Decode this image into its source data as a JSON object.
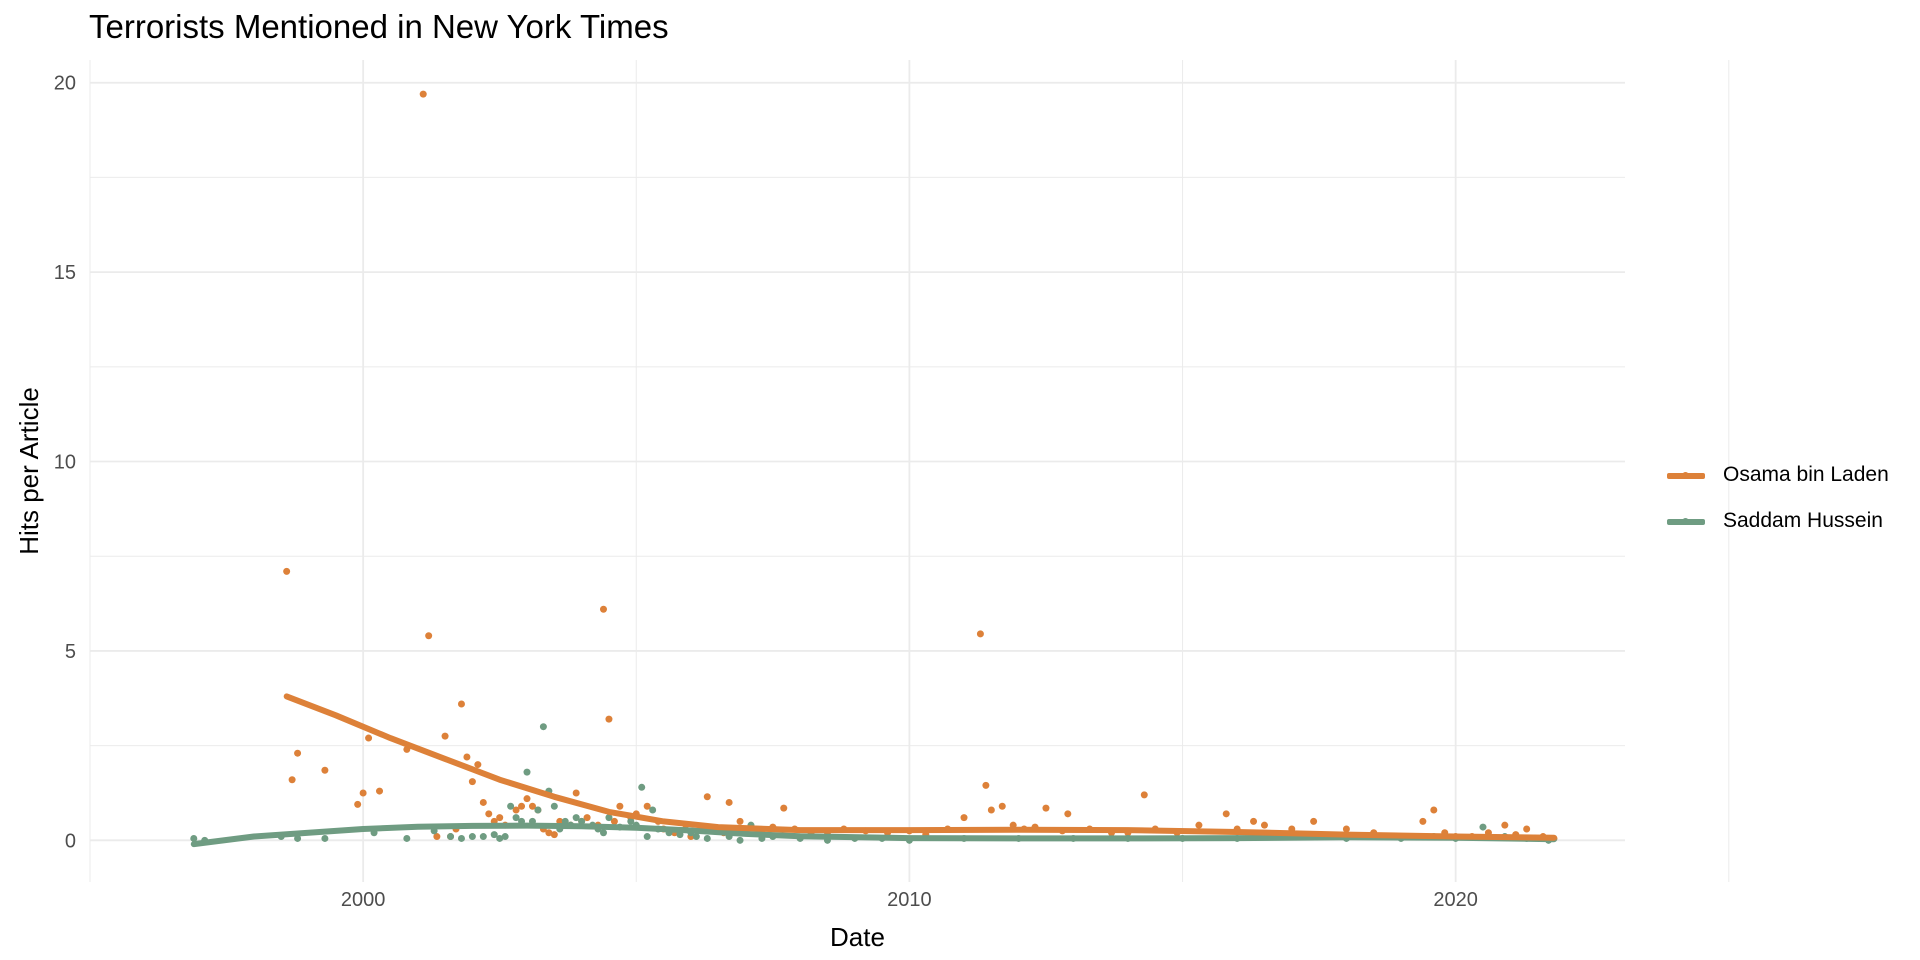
{
  "chart_data": {
    "type": "line",
    "title": "Terrorists Mentioned in New York Times",
    "xlabel": "Date",
    "ylabel": "Hits per Article",
    "xlim": [
      1995,
      2023.1
    ],
    "ylim": [
      -1.1,
      20.6
    ],
    "x_ticks": [
      2000,
      2010,
      2020
    ],
    "x_tick_labels": [
      "2000",
      "2010",
      "2020"
    ],
    "y_ticks": [
      0,
      5,
      10,
      15,
      20
    ],
    "y_tick_labels": [
      "0",
      "5",
      "10",
      "15",
      "20"
    ],
    "grid": true,
    "legend_position": "right",
    "colors": {
      "osama": "#DD8139",
      "saddam": "#6F9C82",
      "grid": "#EBEBEB"
    },
    "series": [
      {
        "name": "Osama bin Laden",
        "color": "#DD8139",
        "smooth": [
          [
            1998.6,
            3.8
          ],
          [
            1999.5,
            3.3
          ],
          [
            2000.5,
            2.7
          ],
          [
            2001.5,
            2.15
          ],
          [
            2002.5,
            1.6
          ],
          [
            2003.5,
            1.15
          ],
          [
            2004.5,
            0.75
          ],
          [
            2005.5,
            0.5
          ],
          [
            2006.5,
            0.35
          ],
          [
            2008,
            0.27
          ],
          [
            2010,
            0.27
          ],
          [
            2012,
            0.28
          ],
          [
            2014,
            0.27
          ],
          [
            2016,
            0.22
          ],
          [
            2018,
            0.15
          ],
          [
            2020,
            0.1
          ],
          [
            2021.8,
            0.07
          ]
        ],
        "points": [
          [
            1998.6,
            7.1
          ],
          [
            1998.7,
            1.6
          ],
          [
            1998.8,
            2.3
          ],
          [
            1999.3,
            1.85
          ],
          [
            1999.9,
            0.95
          ],
          [
            2000.0,
            1.25
          ],
          [
            2000.1,
            2.7
          ],
          [
            2000.3,
            1.3
          ],
          [
            2000.8,
            2.4
          ],
          [
            2001.1,
            19.7
          ],
          [
            2001.2,
            5.4
          ],
          [
            2001.3,
            0.35
          ],
          [
            2001.35,
            0.1
          ],
          [
            2001.5,
            2.75
          ],
          [
            2001.6,
            0.1
          ],
          [
            2001.7,
            0.3
          ],
          [
            2001.8,
            3.6
          ],
          [
            2001.9,
            2.2
          ],
          [
            2002.0,
            1.55
          ],
          [
            2002.1,
            2.0
          ],
          [
            2002.2,
            1.0
          ],
          [
            2002.3,
            0.7
          ],
          [
            2002.4,
            0.5
          ],
          [
            2002.5,
            0.6
          ],
          [
            2002.6,
            0.4
          ],
          [
            2002.8,
            0.8
          ],
          [
            2002.9,
            0.9
          ],
          [
            2003.0,
            1.1
          ],
          [
            2003.1,
            0.9
          ],
          [
            2003.2,
            0.8
          ],
          [
            2003.3,
            0.3
          ],
          [
            2003.4,
            0.2
          ],
          [
            2003.5,
            0.15
          ],
          [
            2003.6,
            0.5
          ],
          [
            2003.8,
            0.4
          ],
          [
            2003.9,
            1.25
          ],
          [
            2004.0,
            0.5
          ],
          [
            2004.1,
            0.6
          ],
          [
            2004.3,
            0.4
          ],
          [
            2004.4,
            6.1
          ],
          [
            2004.5,
            3.2
          ],
          [
            2004.6,
            0.5
          ],
          [
            2004.7,
            0.9
          ],
          [
            2004.9,
            0.6
          ],
          [
            2005.0,
            0.7
          ],
          [
            2005.2,
            0.9
          ],
          [
            2005.4,
            0.5
          ],
          [
            2005.5,
            0.3
          ],
          [
            2005.7,
            0.2
          ],
          [
            2005.9,
            0.3
          ],
          [
            2006.0,
            0.1
          ],
          [
            2006.2,
            0.3
          ],
          [
            2006.3,
            1.15
          ],
          [
            2006.6,
            0.2
          ],
          [
            2006.7,
            1.0
          ],
          [
            2006.9,
            0.5
          ],
          [
            2007.3,
            0.2
          ],
          [
            2007.5,
            0.35
          ],
          [
            2007.7,
            0.85
          ],
          [
            2007.9,
            0.3
          ],
          [
            2008.2,
            0.2
          ],
          [
            2008.5,
            0.15
          ],
          [
            2008.8,
            0.3
          ],
          [
            2009.2,
            0.25
          ],
          [
            2009.6,
            0.2
          ],
          [
            2010.0,
            0.25
          ],
          [
            2010.3,
            0.15
          ],
          [
            2010.7,
            0.3
          ],
          [
            2011.0,
            0.6
          ],
          [
            2011.3,
            5.45
          ],
          [
            2011.4,
            1.45
          ],
          [
            2011.5,
            0.8
          ],
          [
            2011.7,
            0.9
          ],
          [
            2011.9,
            0.4
          ],
          [
            2012.1,
            0.3
          ],
          [
            2012.3,
            0.35
          ],
          [
            2012.5,
            0.85
          ],
          [
            2012.8,
            0.25
          ],
          [
            2012.9,
            0.7
          ],
          [
            2013.3,
            0.3
          ],
          [
            2013.7,
            0.2
          ],
          [
            2014.0,
            0.2
          ],
          [
            2014.3,
            1.2
          ],
          [
            2014.5,
            0.3
          ],
          [
            2014.9,
            0.2
          ],
          [
            2015.3,
            0.4
          ],
          [
            2015.8,
            0.7
          ],
          [
            2016.0,
            0.3
          ],
          [
            2016.3,
            0.5
          ],
          [
            2016.5,
            0.4
          ],
          [
            2017.0,
            0.3
          ],
          [
            2017.4,
            0.5
          ],
          [
            2018.0,
            0.3
          ],
          [
            2018.5,
            0.2
          ],
          [
            2019.0,
            0.1
          ],
          [
            2019.4,
            0.5
          ],
          [
            2019.6,
            0.8
          ],
          [
            2019.8,
            0.2
          ],
          [
            2020.0,
            0.1
          ],
          [
            2020.3,
            0.1
          ],
          [
            2020.6,
            0.2
          ],
          [
            2020.9,
            0.4
          ],
          [
            2021.1,
            0.15
          ],
          [
            2021.3,
            0.3
          ],
          [
            2021.6,
            0.1
          ],
          [
            2021.8,
            0.05
          ]
        ]
      },
      {
        "name": "Saddam Hussein",
        "color": "#6F9C82",
        "smooth": [
          [
            1996.9,
            -0.1
          ],
          [
            1998,
            0.1
          ],
          [
            1999,
            0.2
          ],
          [
            2000,
            0.3
          ],
          [
            2001,
            0.36
          ],
          [
            2002,
            0.38
          ],
          [
            2003,
            0.39
          ],
          [
            2004,
            0.37
          ],
          [
            2005,
            0.33
          ],
          [
            2006,
            0.26
          ],
          [
            2007,
            0.17
          ],
          [
            2008,
            0.11
          ],
          [
            2010,
            0.06
          ],
          [
            2012,
            0.05
          ],
          [
            2014,
            0.05
          ],
          [
            2016,
            0.06
          ],
          [
            2018,
            0.08
          ],
          [
            2020,
            0.07
          ],
          [
            2021.8,
            0.03
          ]
        ],
        "points": [
          [
            1996.9,
            0.05
          ],
          [
            1997.1,
            0.0
          ],
          [
            1998.5,
            0.1
          ],
          [
            1998.8,
            0.05
          ],
          [
            1999.3,
            0.05
          ],
          [
            2000.2,
            0.2
          ],
          [
            2000.8,
            0.05
          ],
          [
            2001.3,
            0.25
          ],
          [
            2001.6,
            0.1
          ],
          [
            2001.8,
            0.05
          ],
          [
            2002.0,
            0.1
          ],
          [
            2002.2,
            0.1
          ],
          [
            2002.4,
            0.15
          ],
          [
            2002.5,
            0.05
          ],
          [
            2002.6,
            0.1
          ],
          [
            2002.7,
            0.9
          ],
          [
            2002.8,
            0.6
          ],
          [
            2002.9,
            0.5
          ],
          [
            2003.0,
            1.8
          ],
          [
            2003.1,
            0.5
          ],
          [
            2003.2,
            0.8
          ],
          [
            2003.3,
            3.0
          ],
          [
            2003.4,
            1.3
          ],
          [
            2003.5,
            0.9
          ],
          [
            2003.6,
            0.3
          ],
          [
            2003.7,
            0.5
          ],
          [
            2003.8,
            0.4
          ],
          [
            2003.9,
            0.6
          ],
          [
            2004.0,
            0.5
          ],
          [
            2004.2,
            0.4
          ],
          [
            2004.3,
            0.3
          ],
          [
            2004.4,
            0.2
          ],
          [
            2004.5,
            0.6
          ],
          [
            2004.7,
            0.35
          ],
          [
            2004.9,
            0.5
          ],
          [
            2005.0,
            0.4
          ],
          [
            2005.1,
            1.4
          ],
          [
            2005.2,
            0.1
          ],
          [
            2005.3,
            0.8
          ],
          [
            2005.4,
            0.3
          ],
          [
            2005.6,
            0.2
          ],
          [
            2005.8,
            0.15
          ],
          [
            2006.0,
            0.2
          ],
          [
            2006.1,
            0.1
          ],
          [
            2006.3,
            0.05
          ],
          [
            2006.5,
            0.25
          ],
          [
            2006.7,
            0.1
          ],
          [
            2006.9,
            0.0
          ],
          [
            2007.1,
            0.4
          ],
          [
            2007.3,
            0.05
          ],
          [
            2007.5,
            0.1
          ],
          [
            2008.0,
            0.05
          ],
          [
            2008.5,
            0.0
          ],
          [
            2009.0,
            0.05
          ],
          [
            2009.5,
            0.05
          ],
          [
            2010.0,
            0.0
          ],
          [
            2011.0,
            0.05
          ],
          [
            2012.0,
            0.05
          ],
          [
            2013.0,
            0.05
          ],
          [
            2014.0,
            0.05
          ],
          [
            2015.0,
            0.05
          ],
          [
            2016.0,
            0.05
          ],
          [
            2017.0,
            0.1
          ],
          [
            2018.0,
            0.05
          ],
          [
            2019.0,
            0.05
          ],
          [
            2019.6,
            0.1
          ],
          [
            2020.0,
            0.05
          ],
          [
            2020.5,
            0.35
          ],
          [
            2020.9,
            0.1
          ],
          [
            2021.3,
            0.05
          ],
          [
            2021.7,
            0.0
          ]
        ]
      }
    ]
  }
}
